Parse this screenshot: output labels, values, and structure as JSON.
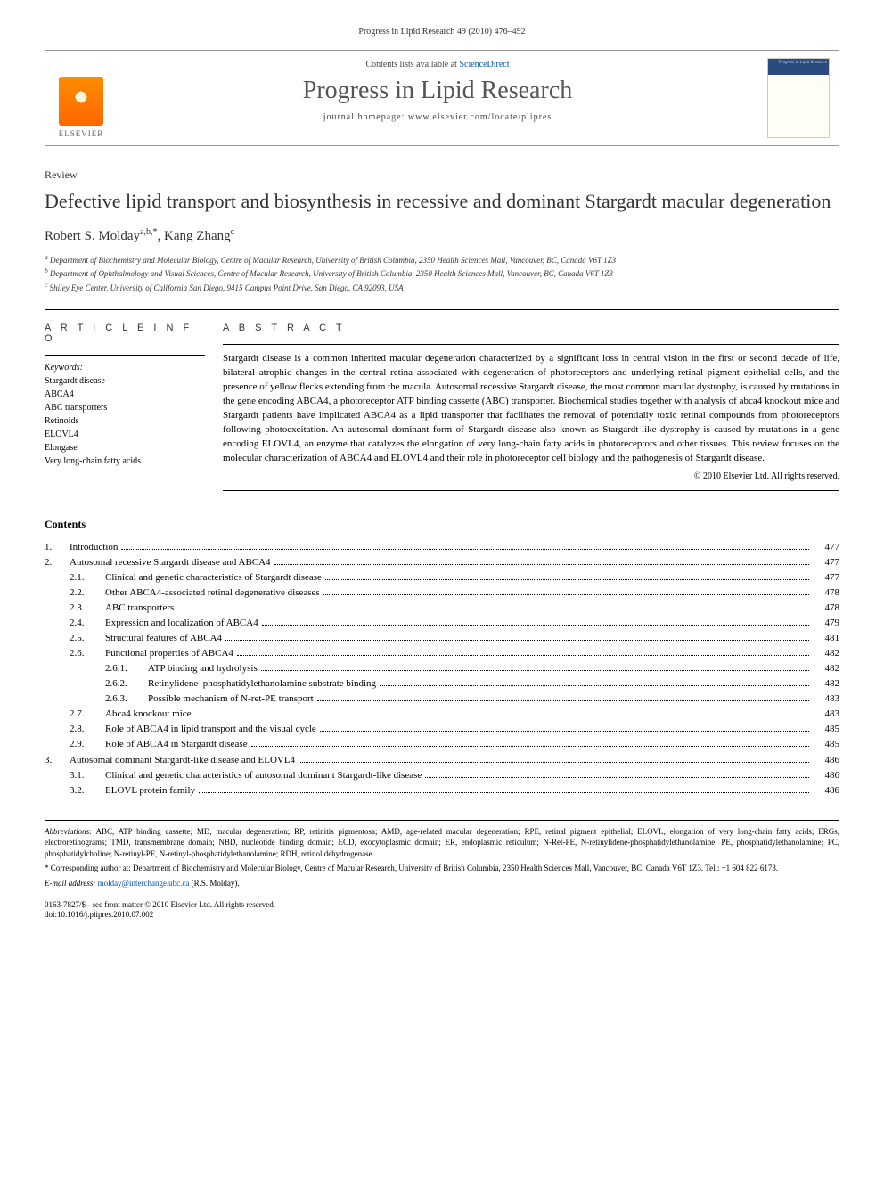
{
  "header": {
    "citation": "Progress in Lipid Research 49 (2010) 476–492"
  },
  "masthead": {
    "publisher": "ELSEVIER",
    "contents_available": "Contents lists available at",
    "sciencedirect": "ScienceDirect",
    "journal_name": "Progress in Lipid Research",
    "homepage_label": "journal homepage: www.elsevier.com/locate/plipres",
    "cover_text": "Progress in Lipid Research"
  },
  "article": {
    "type": "Review",
    "title": "Defective lipid transport and biosynthesis in recessive and dominant Stargardt macular degeneration",
    "authors_html": "Robert S. Molday",
    "author1_sup": "a,b,*",
    "author2": ", Kang Zhang",
    "author2_sup": "c",
    "affiliations": [
      "a Department of Biochemistry and Molecular Biology, Centre of Macular Research, University of British Columbia, 2350 Health Sciences Mall, Vancouver, BC, Canada V6T 1Z3",
      "b Department of Ophthalmology and Visual Sciences, Centre of Macular Research, University of British Columbia, 2350 Health Sciences Mall, Vancouver, BC, Canada V6T 1Z3",
      "c Shiley Eye Center, University of California San Diego, 9415 Campus Point Drive, San Diego, CA 92093, USA"
    ]
  },
  "info": {
    "heading": "A R T I C L E   I N F O",
    "keywords_label": "Keywords:",
    "keywords": [
      "Stargardt disease",
      "ABCA4",
      "ABC transporters",
      "Retinoids",
      "ELOVL4",
      "Elongase",
      "Very long-chain fatty acids"
    ]
  },
  "abstract": {
    "heading": "A B S T R A C T",
    "text": "Stargardt disease is a common inherited macular degeneration characterized by a significant loss in central vision in the first or second decade of life, bilateral atrophic changes in the central retina associated with degeneration of photoreceptors and underlying retinal pigment epithelial cells, and the presence of yellow flecks extending from the macula. Autosomal recessive Stargardt disease, the most common macular dystrophy, is caused by mutations in the gene encoding ABCA4, a photoreceptor ATP binding cassette (ABC) transporter. Biochemical studies together with analysis of abca4 knockout mice and Stargardt patients have implicated ABCA4 as a lipid transporter that facilitates the removal of potentially toxic retinal compounds from photoreceptors following photoexcitation. An autosomal dominant form of Stargardt disease also known as Stargardt-like dystrophy is caused by mutations in a gene encoding ELOVL4, an enzyme that catalyzes the elongation of very long-chain fatty acids in photoreceptors and other tissues. This review focuses on the molecular characterization of ABCA4 and ELOVL4 and their role in photoreceptor cell biology and the pathogenesis of Stargardt disease.",
    "copyright": "© 2010 Elsevier Ltd. All rights reserved."
  },
  "contents": {
    "heading": "Contents",
    "items": [
      {
        "level": 1,
        "num": "1.",
        "title": "Introduction",
        "page": "477"
      },
      {
        "level": 1,
        "num": "2.",
        "title": "Autosomal recessive Stargardt disease and ABCA4",
        "page": "477"
      },
      {
        "level": 2,
        "num": "2.1.",
        "title": "Clinical and genetic characteristics of Stargardt disease",
        "page": "477"
      },
      {
        "level": 2,
        "num": "2.2.",
        "title": "Other ABCA4-associated retinal degenerative diseases",
        "page": "478"
      },
      {
        "level": 2,
        "num": "2.3.",
        "title": "ABC transporters",
        "page": "478"
      },
      {
        "level": 2,
        "num": "2.4.",
        "title": "Expression and localization of ABCA4",
        "page": "479"
      },
      {
        "level": 2,
        "num": "2.5.",
        "title": "Structural features of ABCA4",
        "page": "481"
      },
      {
        "level": 2,
        "num": "2.6.",
        "title": "Functional properties of ABCA4",
        "page": "482"
      },
      {
        "level": 3,
        "num": "2.6.1.",
        "title": "ATP binding and hydrolysis",
        "page": "482"
      },
      {
        "level": 3,
        "num": "2.6.2.",
        "title": "Retinylidene–phosphatidylethanolamine substrate binding",
        "page": "482"
      },
      {
        "level": 3,
        "num": "2.6.3.",
        "title": "Possible mechanism of N-ret-PE transport",
        "page": "483"
      },
      {
        "level": 2,
        "num": "2.7.",
        "title": "Abca4 knockout mice",
        "page": "483"
      },
      {
        "level": 2,
        "num": "2.8.",
        "title": "Role of ABCA4 in lipid transport and the visual cycle",
        "page": "485"
      },
      {
        "level": 2,
        "num": "2.9.",
        "title": "Role of ABCA4 in Stargardt disease",
        "page": "485"
      },
      {
        "level": 1,
        "num": "3.",
        "title": "Autosomal dominant Stargardt-like disease and ELOVL4",
        "page": "486"
      },
      {
        "level": 2,
        "num": "3.1.",
        "title": "Clinical and genetic characteristics of autosomal dominant Stargardt-like disease",
        "page": "486"
      },
      {
        "level": 2,
        "num": "3.2.",
        "title": "ELOVL protein family",
        "page": "486"
      }
    ]
  },
  "footnotes": {
    "abbrev_label": "Abbreviations:",
    "abbrev_text": " ABC, ATP binding cassette; MD, macular degeneration; RP, retinitis pigmentosa; AMD, age-related macular degeneration; RPE, retinal pigment epithelial; ELOVL, elongation of very long-chain fatty acids; ERGs, electroretinograms; TMD, transmembrane domain; NBD, nucleotide binding domain; ECD, exocytoplasmic domain; ER, endoplasmic reticulum; N-Ret-PE, N-retinylidene-phosphatidylethanolamine; PE, phosphatidylethanolamine; PC, phosphatidylcholine; N-retinyl-PE, N-retinyl-phosphatidylethanolamine; RDH, retinol dehydrogenase.",
    "corresponding": "* Corresponding author at: Department of Biochemistry and Molecular Biology, Centre of Macular Research, University of British Columbia, 2350 Health Sciences Mall, Vancouver, BC, Canada V6T 1Z3. Tel.: +1 604 822 6173.",
    "email_label": "E-mail address:",
    "email": "molday@interchange.ubc.ca",
    "email_suffix": " (R.S. Molday).",
    "issn": "0163-7827/$ - see front matter © 2010 Elsevier Ltd. All rights reserved.",
    "doi": "doi:10.1016/j.plipres.2010.07.002"
  }
}
